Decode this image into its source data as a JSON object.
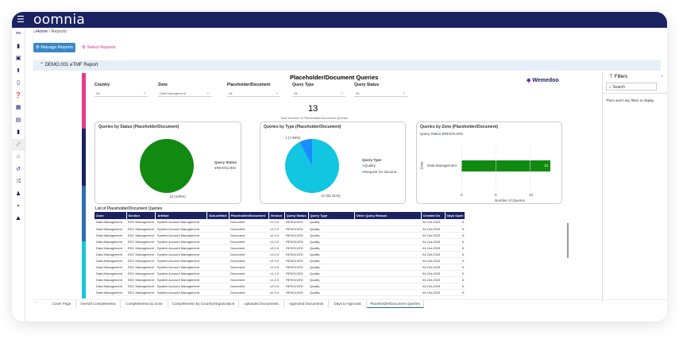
{
  "app": {
    "logo": "oomnia",
    "menu_icon": "hamburger-icon"
  },
  "breadcrumb": {
    "home": "Home",
    "current": "Reports"
  },
  "buttons": {
    "manage": "Manage Reports",
    "select": "Select Reports"
  },
  "report_bar": {
    "title": "DEMO.001 eTMF Report"
  },
  "report": {
    "title": "Placeholder/Document Queries",
    "brand": "Wemedoo",
    "filters": [
      {
        "label": "Country",
        "value": "All"
      },
      {
        "label": "Zone",
        "value": "Data Management"
      },
      {
        "label": "Placeholder/Document",
        "value": "All"
      },
      {
        "label": "Query Type",
        "value": "All"
      },
      {
        "label": "Query Status",
        "value": "All"
      }
    ],
    "kpi": {
      "value": "13",
      "label": "Total Number of Placeholder/Document Queries"
    },
    "colors": {
      "resolved": "#128a12",
      "quality": "#12c5e0",
      "request": "#1a8cff",
      "navy": "#1b2262",
      "pink": "#e63b8e"
    }
  },
  "chart_data": [
    {
      "type": "pie",
      "title": "Queries by Status (Placeholder/Document)",
      "legend_title": "Query Status",
      "categories": [
        "RESOLVED"
      ],
      "values": [
        13
      ],
      "labels": [
        "13 (100%)"
      ]
    },
    {
      "type": "pie",
      "title": "Queries by Type (Placeholder/Document)",
      "legend_title": "Query Type",
      "categories": [
        "Quality",
        "Request for docume..."
      ],
      "values": [
        12,
        1
      ],
      "labels": [
        "12 (92.31%)",
        "1 (7.69%)"
      ]
    },
    {
      "type": "bar",
      "title": "Queries by Zone (Placeholder/Document)",
      "legend_title": "Query Status",
      "legend": [
        "RESOLVED"
      ],
      "categories": [
        "Data Management"
      ],
      "values": [
        13
      ],
      "xlabel": "Number of Queries",
      "ylabel": "Zone",
      "xticks": [
        "0",
        "5",
        "10"
      ],
      "xlim": [
        0,
        13
      ]
    }
  ],
  "table": {
    "title": "List of Placeholder/Document Queries",
    "columns": [
      "Zone",
      "Section",
      "Artifact",
      "Sub-artifact",
      "Placeholder/Document",
      "Version",
      "Query Status",
      "Query Type",
      "Other Query Reason",
      "Created On",
      "Days Open"
    ],
    "versions": [
      "v1.0.0",
      "v1.1.0",
      "v2.0.0",
      "v1.0.0",
      "v3.0.0",
      "v1.0.0",
      "v2.0.0",
      "v1.0.0",
      "v1.1.0",
      "v1.2.0",
      "v2.0.0",
      "v2.0.0"
    ],
    "row": {
      "zone": "Data Management",
      "section": "EDC Management",
      "artifact": "System Account Management",
      "sub": "",
      "doc": "Document",
      "status": "RESOLVED",
      "type": "Quality",
      "reason": "",
      "created": "04-Oct-2023",
      "days": "5"
    }
  },
  "filters_pane": {
    "title": "Filters",
    "search_placeholder": "Search",
    "empty": "There aren't any filters to display."
  },
  "tabs": [
    "Cover Page",
    "Overall Completeness",
    "Completeness by Zone",
    "Completeness by Country/Organization",
    "Uploaded Documents",
    "Approved Documents",
    "Days to Approval",
    "Placeholder/Document Queries"
  ],
  "active_tab": "Placeholder/Document Queries"
}
